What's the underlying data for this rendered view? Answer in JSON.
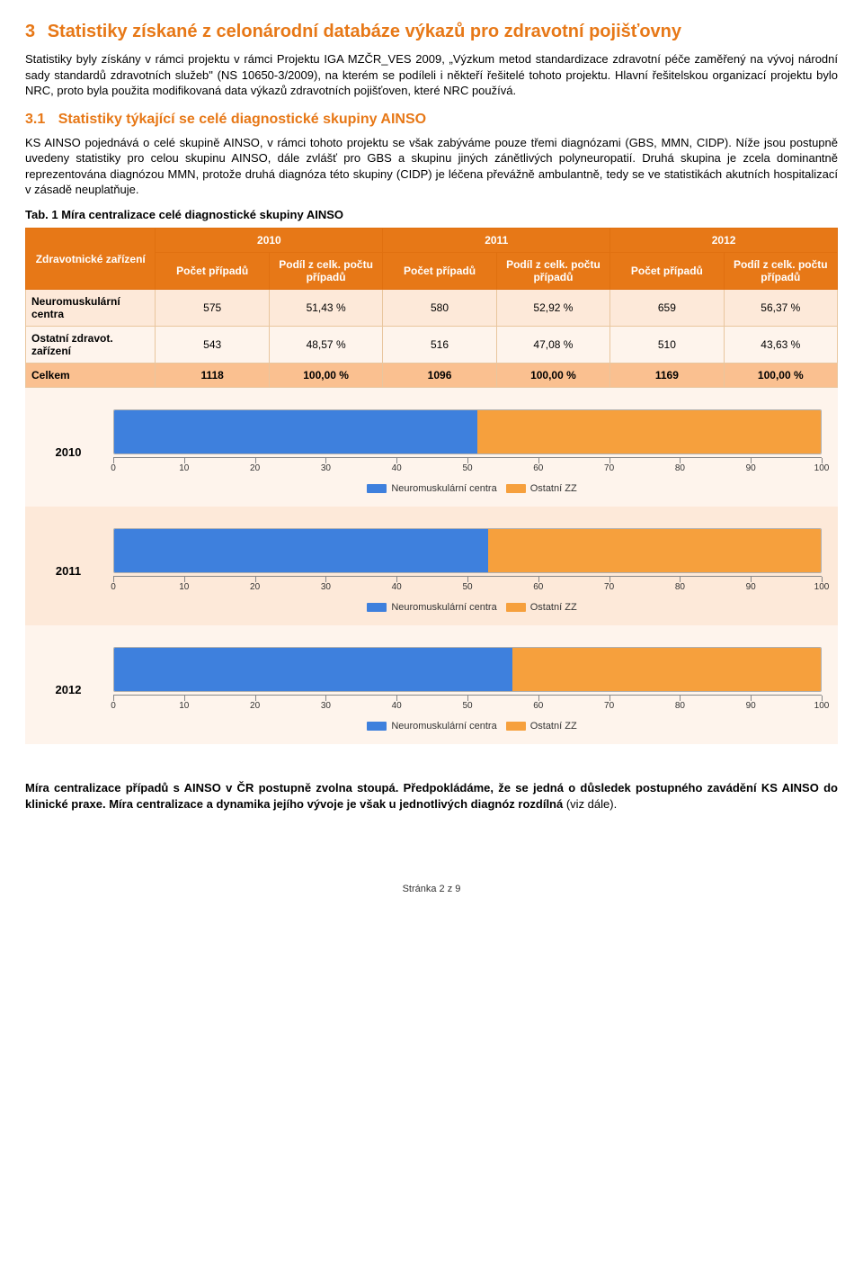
{
  "section": {
    "number": "3",
    "title": "Statistiky získané z celonárodní databáze výkazů pro zdravotní pojišťovny",
    "para1": "Statistiky byly získány v rámci projektu v rámci Projektu IGA MZČR_VES 2009, „Výzkum metod standardizace zdravotní péče zaměřený na vývoj národní sady standardů zdravotních služeb\" (NS 10650-3/2009), na kterém se podíleli i někteří řešitelé tohoto projektu. Hlavní řešitelskou organizací projektu bylo NRC, proto byla použita modifikovaná data výkazů zdravotních pojišťoven, které NRC používá."
  },
  "subsection": {
    "number": "3.1",
    "title": "Statistiky týkající se celé diagnostické skupiny AINSO",
    "para1": "KS AINSO pojednává o celé skupině AINSO, v rámci tohoto projektu se však zabýváme pouze třemi diagnózami (GBS, MMN, CIDP). Níže jsou postupně uvedeny statistiky pro celou skupinu AINSO, dále zvlášť pro GBS a skupinu jiných zánětlivých polyneuropatií. Druhá skupina je zcela dominantně reprezentována diagnózou MMN, protože druhá diagnóza této skupiny (CIDP) je léčena převážně ambulantně, tedy se ve statistikách akutních hospitalizací v zásadě neuplatňuje."
  },
  "table": {
    "caption": "Tab. 1 Míra centralizace celé diagnostické skupiny AINSO",
    "head_left": "Zdravotnické zařízení",
    "years": [
      "2010",
      "2011",
      "2012"
    ],
    "sub_count": "Počet případů",
    "sub_share": "Podíl z celk. počtu případů",
    "rows": [
      {
        "label": "Neuromuskulární centra",
        "cells": [
          "575",
          "51,43 %",
          "580",
          "52,92 %",
          "659",
          "56,37 %"
        ],
        "class": "row-light"
      },
      {
        "label": "Ostatní zdravot. zařízení",
        "cells": [
          "543",
          "48,57 %",
          "516",
          "47,08 %",
          "510",
          "43,63 %"
        ],
        "class": "row-lighter"
      },
      {
        "label": "Celkem",
        "cells": [
          "1118",
          "100,00 %",
          "1096",
          "100,00 %",
          "1169",
          "100,00 %"
        ],
        "class": "row-total"
      }
    ]
  },
  "charts": {
    "colors": {
      "blue": "#3e80dd",
      "orange": "#f6a03d",
      "track_bg": "#ffffff"
    },
    "legend": {
      "a": "Neuromuskulární centra",
      "b": "Ostatní ZZ"
    },
    "ticks": [
      0,
      10,
      20,
      30,
      40,
      50,
      60,
      70,
      80,
      90,
      100
    ],
    "series": [
      {
        "year": "2010",
        "blue": 51.43,
        "orange": 48.57,
        "row_bg": "#fef4ec"
      },
      {
        "year": "2011",
        "blue": 52.92,
        "orange": 47.08,
        "row_bg": "#fde9d9"
      },
      {
        "year": "2012",
        "blue": 56.37,
        "orange": 43.63,
        "row_bg": "#fef4ec"
      }
    ]
  },
  "footer": {
    "bold_a": "Míra centralizace případů s AINSO v ČR postupně zvolna stoupá. Předpokládáme, že se jedná o důsledek postupného zavádění KS AINSO do klinické praxe. Míra centralizace a dynamika jejího vývoje je však u jednotlivých diagnóz rozdílná",
    "tail": " (viz dále)."
  },
  "page_number": "Stránka 2 z 9"
}
